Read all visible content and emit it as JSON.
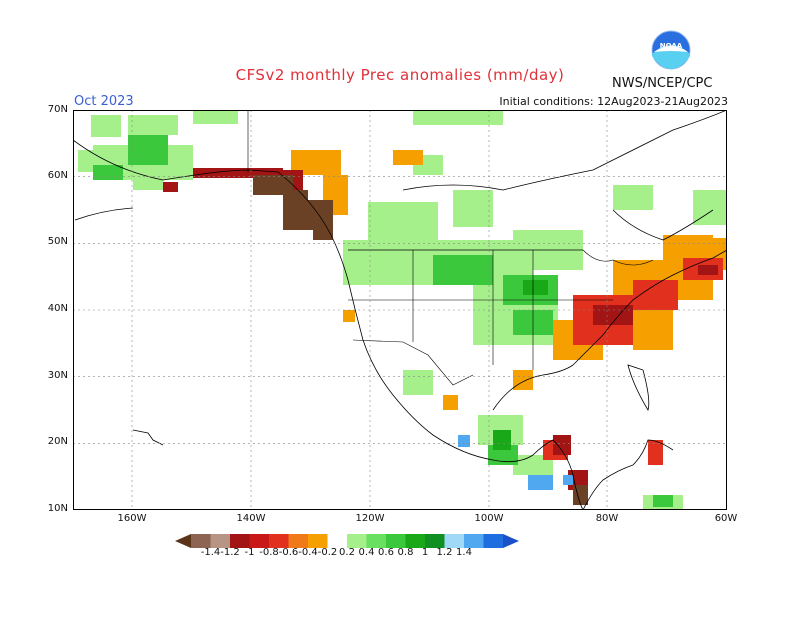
{
  "title": "CFSv2 monthly Prec anomalies (mm/day)",
  "period": "Oct 2023",
  "initial_conditions": "Initial conditions: 12Aug2023-21Aug2023",
  "agency": "NWS/NCEP/CPC",
  "logo_text": "NOAA",
  "lat_labels": [
    "70N",
    "60N",
    "50N",
    "40N",
    "30N",
    "20N",
    "10N"
  ],
  "lon_labels": [
    "160W",
    "140W",
    "120W",
    "100W",
    "80W",
    "60W"
  ],
  "colorbar": {
    "labels": [
      "-1.4",
      "-1.2",
      "-1",
      "-0.8",
      "-0.6",
      "-0.4",
      "-0.2",
      "0.2",
      "0.4",
      "0.6",
      "0.8",
      "1",
      "1.2",
      "1.4"
    ],
    "colors": [
      "#6b4126",
      "#8c6451",
      "#b89484",
      "#a31414",
      "#c81818",
      "#e2301e",
      "#f07a1a",
      "#f5a000",
      "#ffffff",
      "#a6f08c",
      "#6ae060",
      "#3cc83c",
      "#18a818",
      "#109020",
      "#a0d8f8",
      "#50a8f0",
      "#1e6ee0",
      "#1a50c8"
    ],
    "under_color": "#5a3418",
    "over_color": "#1a50c8"
  }
}
